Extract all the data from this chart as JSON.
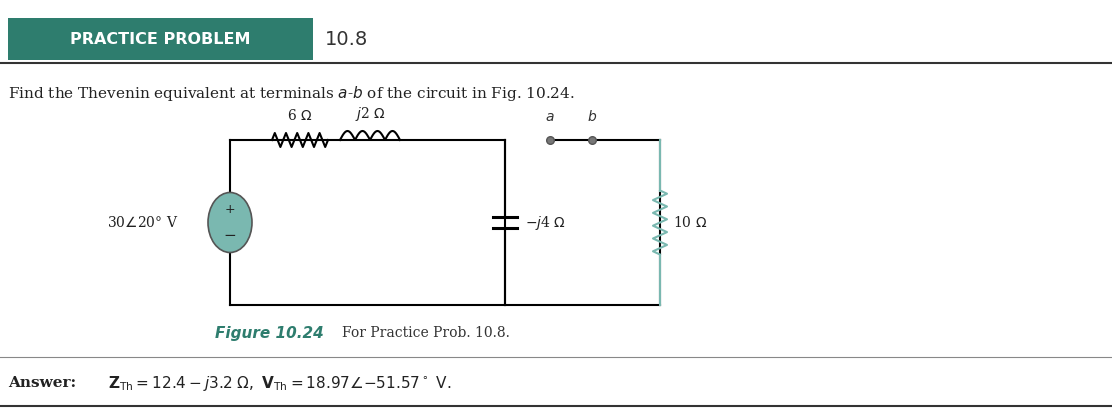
{
  "title_box_text": "PRACTICE PROBLEM",
  "title_number": "10.8",
  "title_box_color": "#2e7d6e",
  "title_text_color": "#ffffff",
  "subtitle": "Find the Thevenin equivalent at terminals $a$-$b$ of the circuit in Fig. 10.24.",
  "figure_label": "Figure 10.24",
  "figure_label_color": "#2e7d6e",
  "figure_caption": "For Practice Prob. 10.8.",
  "answer_bold": "Answer:",
  "bg_color": "#ffffff",
  "circuit_color": "#000000",
  "source_color": "#7ab8b0",
  "resistor_right_color": "#7ab8b0",
  "line_color": "#333333"
}
